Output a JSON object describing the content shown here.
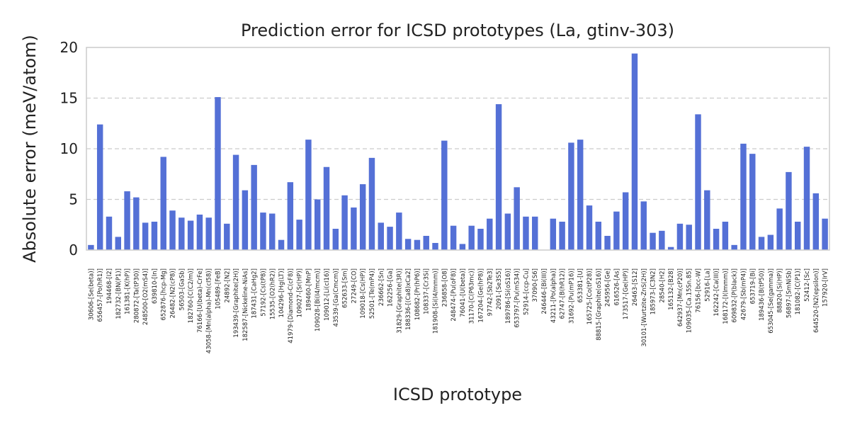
{
  "chart_data": {
    "type": "bar",
    "title": "Prediction error for ICSD prototypes (La, gtinv-303)",
    "xlabel": "ICSD prototype",
    "ylabel": "Absolute error (meV/atom)",
    "ylim": [
      0,
      20
    ],
    "yticks": [
      0,
      5,
      10,
      15,
      20
    ],
    "grid": "horizontal-dashed",
    "bar_color": "#5470d6",
    "categories": [
      "30606-[Se(beta)]",
      "656457-[Po(hR1)]",
      "194468-[I2]",
      "182732-[BN(P1)]",
      "161381-[K(hP)]",
      "280872-[Ta(tP30)]",
      "248500-[O2(mS4)]",
      "639810-[In]",
      "652876-[hcp-Mg]",
      "26482-[N2(cP8)]",
      "56503-[GaSb]",
      "182760-[C(C2/m)]",
      "76166-[U(beta)-CrFe]",
      "43058-[Mn(alpha)-Mn(cI58)]",
      "105489-[FeB]",
      "24892-[N2]",
      "193439-[Graphite(2H)]",
      "182587-[Nickeline-NiAs]",
      "187431-[CaHg2]",
      "57192-[Cs(tP8)]",
      "15535-[O2(hR2)]",
      "104296-[Hg(LT)]",
      "41979-[Diamond-C(cF8)]",
      "109027-[Sr(HP)]",
      "189460-[MnP]",
      "109028-[Bi(I4/mcm)]",
      "109012-[Li(cI16)]",
      "43539-[Ga(Cmcm)]",
      "652633-[Sm]",
      "27249-[CO]",
      "109018-[Cs(HP)]",
      "52501-[Te(mP4)]",
      "236662-[Sn]",
      "162256-[Ga]",
      "31829-[Graphite(3R)]",
      "188336-[(Ca8)xCa2]",
      "108682-[Pr(hP6)]",
      "108337-[Cr3Si]",
      "181908-[Si(I4/mmm)]",
      "236858-[O8]",
      "248474-[Pu(oF8)]",
      "76041-[U(beta)]",
      "31170-[C(P63mc)]",
      "167204-[Ge(hP8)]",
      "97742-[Sb2Te3]",
      "2091-[Se3S5]",
      "189786-[Si(oS16)]",
      "653797-[Pu(mS34)]",
      "52914-[ccp-Cu]",
      "37090-[S6]",
      "246446-[Bi(III)]",
      "43211-[Po(alpha)]",
      "62747-[B(hR12)]",
      "31692-[Pu(mP16)]",
      "653381-[U]",
      "165725-[Co(tP28)]",
      "88815-[Graphite(oS16)]",
      "245956-[Ge]",
      "616526-[As]",
      "173517-[Ge(HP)]",
      "26463-[S12]",
      "30101-[Wurtzite-ZnS(2H)]",
      "185973-[C3N2]",
      "28540-[H2]",
      "165132-[B28]",
      "642937-[Mn(cP20)]",
      "109035-[Ca.15Sn.85]",
      "76156-[bcc-W]",
      "52916-[La]",
      "162242-[Ca(III)]",
      "168172-[I(Immm)]",
      "609832-[P(black)]",
      "42679-[Sb(mP4)]",
      "653719-[Bi]",
      "189436-[B(tP50)]",
      "653045-[Se(gamma)]",
      "88820-[Si(HP)]",
      "56897-[SmNiSb]",
      "181082-[C(P1)]",
      "52412-[Sc]",
      "644520-[N2(epsilon)]",
      "157920-[IrV]"
    ],
    "values": [
      0.5,
      12.4,
      3.3,
      1.3,
      5.8,
      5.2,
      2.7,
      2.8,
      9.2,
      3.9,
      3.2,
      2.9,
      3.5,
      3.2,
      15.1,
      2.6,
      9.4,
      5.9,
      8.4,
      3.7,
      3.6,
      1.0,
      6.7,
      3.0,
      10.9,
      5.0,
      8.2,
      2.1,
      5.4,
      4.2,
      6.5,
      9.1,
      2.7,
      2.3,
      3.7,
      1.1,
      1.0,
      1.4,
      0.7,
      10.8,
      2.4,
      0.6,
      2.4,
      2.1,
      3.1,
      14.4,
      3.6,
      6.2,
      3.3,
      3.3,
      0,
      3.1,
      2.8,
      10.6,
      10.9,
      4.4,
      2.8,
      1.4,
      3.8,
      5.7,
      19.4,
      4.8,
      1.7,
      1.9,
      0.3,
      2.6,
      2.5,
      13.4,
      5.9,
      2.1,
      2.8,
      0.5,
      10.5,
      9.5,
      1.3,
      1.5,
      4.1,
      7.7,
      2.8,
      10.2,
      5.6,
      3.1
    ]
  }
}
